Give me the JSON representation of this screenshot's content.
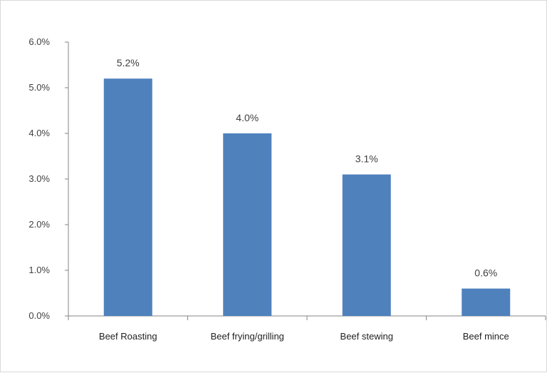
{
  "chart_data": {
    "type": "bar",
    "title": "",
    "xlabel": "",
    "ylabel": "",
    "categories": [
      "Beef Roasting",
      "Beef frying/grilling",
      "Beef stewing",
      "Beef mince"
    ],
    "values": [
      5.2,
      4.0,
      3.1,
      0.6
    ],
    "value_labels": [
      "5.2%",
      "4.0%",
      "3.1%",
      "0.6%"
    ],
    "ylim": [
      0,
      6
    ],
    "yticks": [
      0,
      1,
      2,
      3,
      4,
      5,
      6
    ],
    "ytick_labels": [
      "0.0%",
      "1.0%",
      "2.0%",
      "3.0%",
      "4.0%",
      "5.0%",
      "6.0%"
    ],
    "grid": false,
    "legend": "none",
    "bar_color": "#4f81bd",
    "axis_color": "#868686"
  }
}
